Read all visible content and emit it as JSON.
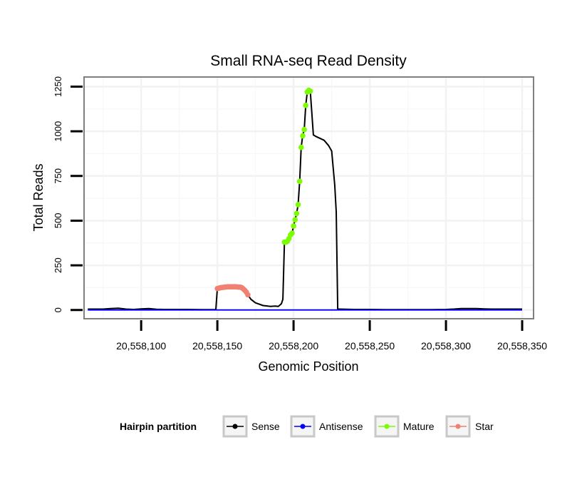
{
  "chart_data": {
    "type": "line",
    "title": "Small RNA-seq Read Density",
    "xlabel": "Genomic Position",
    "ylabel": "Total Reads",
    "xlim": [
      20558063,
      20558357
    ],
    "ylim": [
      -45,
      1300
    ],
    "x_ticks": [
      20558100,
      20558150,
      20558200,
      20558250,
      20558300,
      20558350
    ],
    "x_tick_labels": [
      "20,558,100",
      "20,558,150",
      "20,558,200",
      "20,558,250",
      "20,558,300",
      "20,558,350"
    ],
    "y_ticks": [
      0,
      250,
      500,
      750,
      1000,
      1250
    ],
    "y_tick_labels": [
      "0",
      "250",
      "500",
      "750",
      "1000",
      "1250"
    ],
    "legend": {
      "title": "Hairpin partition",
      "position": "bottom",
      "entries": [
        "Sense",
        "Antisense",
        "Mature",
        "Star"
      ]
    },
    "series": [
      {
        "name": "Sense",
        "color": "#000000",
        "marker": "line",
        "x": [
          20558065,
          20558075,
          20558080,
          20558085,
          20558090,
          20558095,
          20558100,
          20558105,
          20558110,
          20558115,
          20558120,
          20558130,
          20558140,
          20558145,
          20558149,
          20558150,
          20558152,
          20558155,
          20558160,
          20558165,
          20558166,
          20558167,
          20558168,
          20558169,
          20558170,
          20558172,
          20558175,
          20558180,
          20558185,
          20558188,
          20558190,
          20558192,
          20558193,
          20558194,
          20558195,
          20558196,
          20558197,
          20558198,
          20558199,
          20558200,
          20558201,
          20558202,
          20558203,
          20558204,
          20558205,
          20558206,
          20558207,
          20558208,
          20558209,
          20558210,
          20558211,
          20558212,
          20558213,
          20558215,
          20558220,
          20558223,
          20558225,
          20558227,
          20558228,
          20558229,
          20558230,
          20558240,
          20558250,
          20558260,
          20558270,
          20558280,
          20558290,
          20558300,
          20558305,
          20558310,
          20558320,
          20558325,
          20558330,
          20558340,
          20558350
        ],
        "values": [
          5,
          5,
          8,
          10,
          5,
          3,
          6,
          8,
          4,
          3,
          3,
          3,
          2,
          2,
          2,
          120,
          125,
          128,
          130,
          128,
          125,
          118,
          110,
          100,
          85,
          60,
          40,
          25,
          20,
          22,
          20,
          35,
          60,
          380,
          380,
          385,
          400,
          420,
          430,
          470,
          505,
          540,
          590,
          720,
          910,
          975,
          1010,
          1145,
          1220,
          1230,
          1225,
          1100,
          980,
          970,
          950,
          920,
          890,
          700,
          550,
          5,
          5,
          3,
          3,
          2,
          2,
          2,
          2,
          3,
          5,
          8,
          8,
          6,
          5,
          5,
          5
        ]
      },
      {
        "name": "Antisense",
        "color": "#0000FF",
        "marker": "line",
        "x": [
          20558065,
          20558350
        ],
        "values": [
          0,
          0
        ]
      },
      {
        "name": "Mature",
        "color": "#7CFC00",
        "marker": "point",
        "x": [
          20558194,
          20558195,
          20558196,
          20558197,
          20558198,
          20558199,
          20558200,
          20558201,
          20558202,
          20558203,
          20558204,
          20558205,
          20558206,
          20558207,
          20558208,
          20558209,
          20558210,
          20558211
        ],
        "values": [
          380,
          380,
          385,
          400,
          420,
          430,
          470,
          505,
          540,
          590,
          720,
          910,
          975,
          1010,
          1145,
          1220,
          1230,
          1225
        ]
      },
      {
        "name": "Star",
        "color": "#F08070",
        "marker": "point",
        "x": [
          20558150,
          20558151,
          20558152,
          20558153,
          20558154,
          20558155,
          20558156,
          20558157,
          20558158,
          20558159,
          20558160,
          20558161,
          20558162,
          20558163,
          20558164,
          20558165,
          20558166,
          20558167,
          20558168,
          20558169,
          20558170
        ],
        "values": [
          120,
          122,
          125,
          126,
          127,
          128,
          129,
          130,
          130,
          130,
          130,
          130,
          130,
          129,
          128,
          128,
          125,
          118,
          110,
          100,
          85
        ]
      }
    ]
  }
}
